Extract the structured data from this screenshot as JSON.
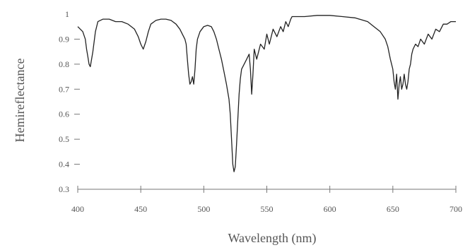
{
  "chart_data": {
    "type": "line",
    "title": "",
    "xlabel": "Wavelength (nm)",
    "ylabel": "Hemireflectance",
    "xlim": [
      400,
      700
    ],
    "ylim": [
      0.3,
      1.0
    ],
    "x_ticks": [
      400,
      450,
      500,
      550,
      600,
      650,
      700
    ],
    "x_tick_labels": [
      "400",
      "450",
      "500",
      "550",
      "600",
      "650",
      "700"
    ],
    "y_ticks": [
      0.3,
      0.4,
      0.5,
      0.6,
      0.7,
      0.8,
      0.9,
      1.0
    ],
    "y_tick_labels": [
      "0.3",
      "0.4",
      "0.5",
      "0.6",
      "0.7",
      "0.8",
      "0.9",
      "1"
    ],
    "grid": false,
    "legend": "none",
    "line_color": "#222222",
    "axis_color": "#777777",
    "series": [
      {
        "x": [
          400,
          402,
          404,
          406,
          407,
          408,
          409,
          410,
          412,
          414,
          416,
          420,
          425,
          430,
          435,
          440,
          445,
          448,
          450,
          452,
          454,
          456,
          458,
          462,
          466,
          470,
          474,
          478,
          481,
          483,
          485,
          486,
          487,
          488,
          489,
          490,
          491,
          492,
          493,
          494,
          495,
          497,
          500,
          503,
          506,
          508,
          510,
          512,
          514,
          516,
          518,
          520,
          521,
          522,
          523,
          524,
          525,
          526,
          527,
          528,
          529,
          530,
          532,
          534,
          536,
          537,
          538,
          539,
          540,
          542,
          545,
          548,
          550,
          552,
          555,
          558,
          561,
          563,
          565,
          567,
          569,
          570,
          575,
          580,
          590,
          600,
          610,
          620,
          630,
          635,
          640,
          644,
          646,
          648,
          650,
          651,
          652,
          653,
          654,
          655,
          656,
          657,
          658,
          659,
          660,
          661,
          662,
          663,
          664,
          665,
          666,
          668,
          670,
          672,
          675,
          678,
          681,
          684,
          687,
          690,
          693,
          696,
          700
        ],
        "y": [
          0.95,
          0.94,
          0.93,
          0.9,
          0.86,
          0.83,
          0.8,
          0.79,
          0.85,
          0.93,
          0.97,
          0.98,
          0.98,
          0.97,
          0.97,
          0.96,
          0.94,
          0.91,
          0.88,
          0.86,
          0.89,
          0.93,
          0.96,
          0.975,
          0.98,
          0.98,
          0.975,
          0.96,
          0.94,
          0.92,
          0.9,
          0.88,
          0.82,
          0.76,
          0.72,
          0.73,
          0.75,
          0.72,
          0.78,
          0.86,
          0.9,
          0.93,
          0.95,
          0.955,
          0.95,
          0.93,
          0.9,
          0.86,
          0.82,
          0.77,
          0.72,
          0.66,
          0.6,
          0.5,
          0.4,
          0.37,
          0.39,
          0.48,
          0.58,
          0.68,
          0.74,
          0.78,
          0.8,
          0.82,
          0.84,
          0.78,
          0.68,
          0.76,
          0.86,
          0.82,
          0.88,
          0.86,
          0.92,
          0.88,
          0.94,
          0.91,
          0.95,
          0.93,
          0.97,
          0.95,
          0.98,
          0.99,
          0.99,
          0.99,
          0.995,
          0.995,
          0.99,
          0.985,
          0.97,
          0.95,
          0.93,
          0.9,
          0.87,
          0.82,
          0.78,
          0.73,
          0.7,
          0.76,
          0.66,
          0.72,
          0.75,
          0.7,
          0.72,
          0.76,
          0.72,
          0.7,
          0.73,
          0.78,
          0.8,
          0.84,
          0.86,
          0.88,
          0.87,
          0.9,
          0.88,
          0.92,
          0.9,
          0.94,
          0.93,
          0.96,
          0.96,
          0.97,
          0.97
        ]
      }
    ]
  }
}
